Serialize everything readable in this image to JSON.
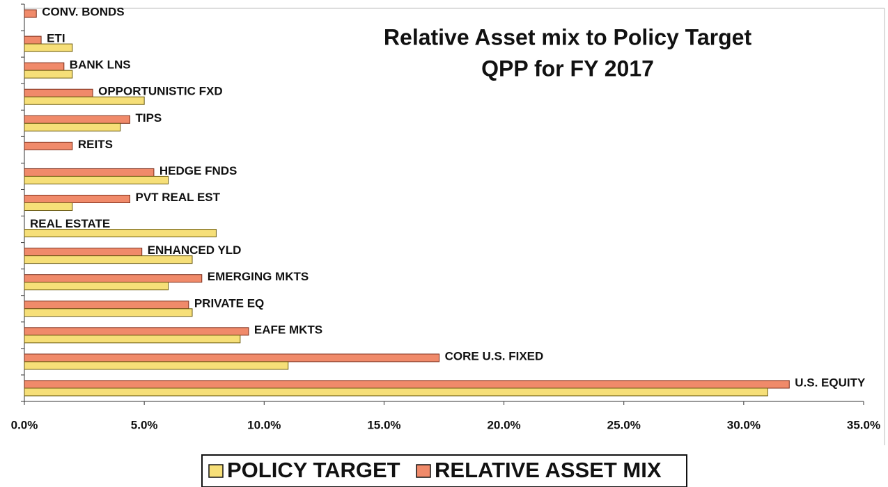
{
  "chart_data": {
    "type": "barh",
    "title": [
      "Relative Asset mix to Policy Target",
      "QPP for FY 2017"
    ],
    "categories": [
      "CONV.  BONDS",
      "ETI",
      "BANK LNS",
      "OPPORTUNISTIC FXD",
      "TIPS",
      "REITS",
      "HEDGE FNDS",
      "PVT  REAL  EST",
      "REAL ESTATE",
      "ENHANCED YLD",
      "EMERGING MKTS",
      "PRIVATE EQ",
      "EAFE MKTS",
      "CORE U.S. FIXED",
      "U.S. EQUITY"
    ],
    "series": [
      {
        "name": "POLICY TARGET",
        "color": "#f6df78",
        "values": [
          0,
          2.0,
          2.0,
          5.0,
          4.0,
          0,
          6.0,
          2.0,
          8.0,
          7.0,
          6.0,
          7.0,
          9.0,
          11.0,
          31.0
        ]
      },
      {
        "name": "RELATIVE ASSET MIX",
        "color": "#f08a6a",
        "values": [
          0.5,
          0.7,
          1.65,
          2.85,
          4.4,
          2.0,
          5.4,
          4.4,
          0,
          4.9,
          7.4,
          6.85,
          9.35,
          17.3,
          31.9
        ]
      }
    ],
    "xlim": [
      0,
      35
    ],
    "xticks": [
      {
        "value": 0,
        "label": "0.0%"
      },
      {
        "value": 5,
        "label": "5.0%"
      },
      {
        "value": 10,
        "label": "10.0%"
      },
      {
        "value": 15,
        "label": "15.0%"
      },
      {
        "value": 20,
        "label": "20.0%"
      },
      {
        "value": 25,
        "label": "25.0%"
      },
      {
        "value": 30,
        "label": "30.0%"
      },
      {
        "value": 35,
        "label": "35.0%"
      }
    ],
    "legend": "bottom"
  }
}
